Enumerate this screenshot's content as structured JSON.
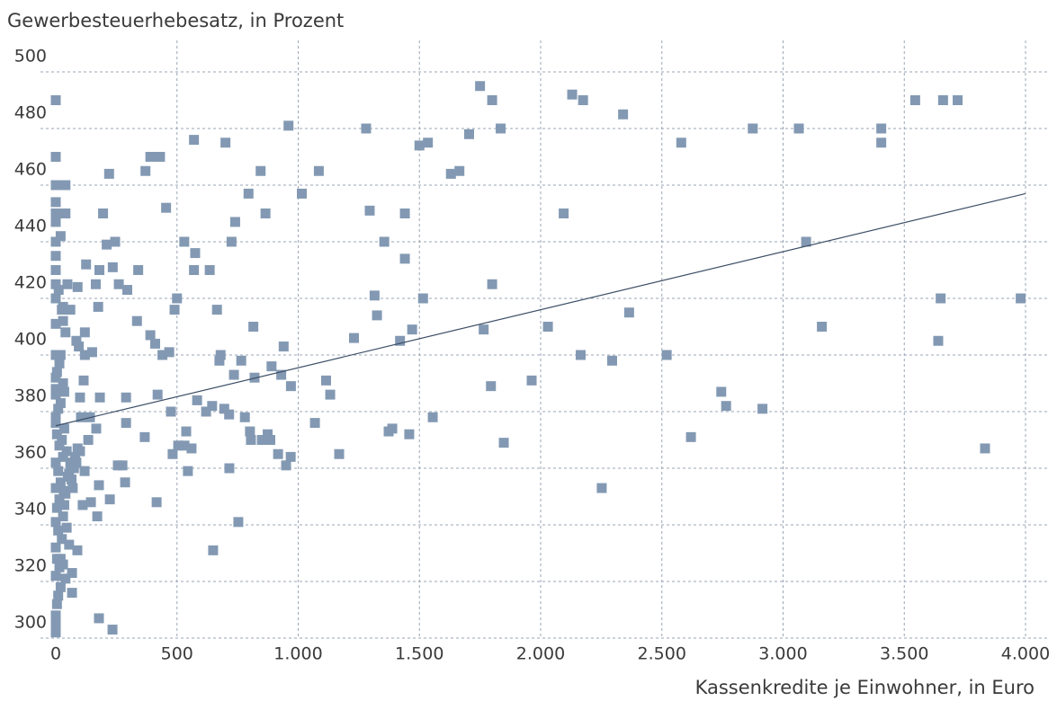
{
  "chart_data": {
    "type": "scatter",
    "title": "Gewerbesteuerhebesatz, in Prozent",
    "x_label": "Kassenkredite je Einwohner, in Euro",
    "color": "#8399b3",
    "xlim": [
      0,
      4000
    ],
    "ylim": [
      300,
      500
    ],
    "xticks": [
      0,
      500,
      {
        "value": 1000,
        "label": "1.000"
      },
      {
        "value": 1500,
        "label": "1.500"
      },
      {
        "value": 2000,
        "label": "2.000"
      },
      {
        "value": 2500,
        "label": "2.500"
      },
      {
        "value": 3000,
        "label": "3.000"
      },
      {
        "value": 3500,
        "label": "3.500"
      },
      {
        "value": 4000,
        "label": "4.000"
      }
    ],
    "yticks": [
      300,
      320,
      340,
      360,
      380,
      400,
      420,
      440,
      460,
      480,
      500
    ],
    "grid": true,
    "x": [
      0,
      1750,
      1800,
      2130,
      2175,
      2340,
      3545,
      3660,
      3720,
      960,
      1280,
      1835,
      2875,
      3065,
      3405,
      1705,
      570,
      700,
      1535,
      1500,
      2580,
      3405,
      0,
      390,
      430,
      370,
      220,
      845,
      1085,
      1630,
      1665,
      0,
      40,
      795,
      1015,
      0,
      455,
      0,
      40,
      195,
      865,
      1295,
      1440,
      2095,
      0,
      740,
      20,
      0,
      530,
      210,
      245,
      725,
      1355,
      3095,
      575,
      0,
      1440,
      125,
      180,
      235,
      340,
      570,
      635,
      0,
      260,
      48,
      165,
      0,
      295,
      90,
      1800,
      1315,
      500,
      0,
      1515,
      3650,
      3980,
      30,
      60,
      175,
      490,
      665,
      1325,
      2365,
      335,
      0,
      30,
      815,
      2030,
      3160,
      1470,
      1765,
      120,
      1230,
      390,
      85,
      410,
      1420,
      3640,
      940,
      95,
      150,
      468,
      440,
      0,
      20,
      680,
      2165,
      2520,
      765,
      2295,
      120,
      675,
      890,
      735,
      930,
      820,
      1115,
      115,
      1963,
      0,
      970,
      1795,
      1132,
      0,
      35,
      420,
      290,
      182,
      100,
      2745,
      583,
      645,
      620,
      695,
      2765,
      2915,
      475,
      715,
      780,
      1555,
      104,
      141,
      0,
      290,
      1069,
      167,
      801,
      538,
      1373,
      1388,
      1458,
      367,
      874,
      885,
      805,
      850,
      2620,
      1848,
      134,
      505,
      531,
      560,
      3833,
      482,
      917,
      969,
      1169,
      275,
      256,
      950,
      545,
      716,
      119,
      286,
      178,
      33,
      70,
      2252,
      223,
      416,
      145,
      111,
      171,
      753,
      649,
      89,
      67,
      30,
      67,
      178,
      234,
      0,
      0,
      0,
      5,
      10,
      20,
      0,
      15,
      5,
      0,
      25,
      10,
      0,
      30,
      5,
      15,
      40,
      0,
      20,
      50,
      10,
      60,
      0,
      30,
      80,
      45,
      90,
      15,
      70,
      100,
      25,
      5,
      35,
      0,
      10,
      20,
      0,
      30,
      5,
      15,
      40,
      25,
      12,
      55,
      65,
      75,
      85,
      35,
      45,
      55,
      20,
      40
    ],
    "values": [
      490,
      495,
      490,
      492,
      490,
      485,
      490,
      490,
      490,
      481,
      480,
      480,
      480,
      480,
      480,
      478,
      476,
      475,
      475,
      474,
      475,
      475,
      470,
      470,
      470,
      465,
      464,
      465,
      465,
      464,
      465,
      460,
      460,
      457,
      457,
      454,
      452,
      450,
      450,
      450,
      450,
      451,
      450,
      450,
      447,
      447,
      442,
      440,
      440,
      439,
      440,
      440,
      440,
      440,
      436,
      435,
      434,
      432,
      430,
      431,
      430,
      430,
      430,
      430,
      425,
      425,
      425,
      425,
      423,
      424,
      425,
      421,
      420,
      420,
      420,
      420,
      420,
      417,
      416,
      417,
      416,
      416,
      414,
      415,
      412,
      411,
      412,
      410,
      410,
      410,
      409,
      409,
      408,
      406,
      407,
      405,
      404,
      405,
      405,
      403,
      403,
      401,
      401,
      400,
      400,
      400,
      400,
      400,
      400,
      398,
      398,
      400,
      398,
      396,
      393,
      393,
      392,
      391,
      391,
      391,
      392,
      389,
      389,
      386,
      386,
      387,
      386,
      385,
      385,
      385,
      387,
      384,
      382,
      380,
      381,
      382,
      381,
      380,
      379,
      378,
      378,
      378,
      378,
      376,
      376,
      376,
      374,
      373,
      373,
      373,
      374,
      372,
      371,
      372,
      370,
      370,
      370,
      371,
      369,
      370,
      368,
      368,
      367,
      367,
      365,
      365,
      364,
      365,
      361,
      361,
      361,
      359,
      360,
      359,
      355,
      354,
      352,
      353,
      353,
      349,
      348,
      348,
      347,
      343,
      341,
      331,
      331,
      323,
      326,
      316,
      307,
      303,
      302,
      305,
      308,
      312,
      315,
      318,
      322,
      325,
      328,
      332,
      335,
      338,
      341,
      343,
      346,
      349,
      351,
      353,
      355,
      357,
      359,
      361,
      362,
      364,
      364,
      366,
      367,
      368,
      362,
      366,
      370,
      372,
      374,
      378,
      381,
      383,
      388,
      390,
      394,
      397,
      408,
      416,
      423,
      358,
      356,
      360,
      362,
      347,
      339,
      333,
      328,
      321
    ],
    "trend_line": {
      "color": "#3d4f66",
      "x": [
        0,
        4000
      ],
      "values": [
        375,
        457
      ]
    }
  }
}
